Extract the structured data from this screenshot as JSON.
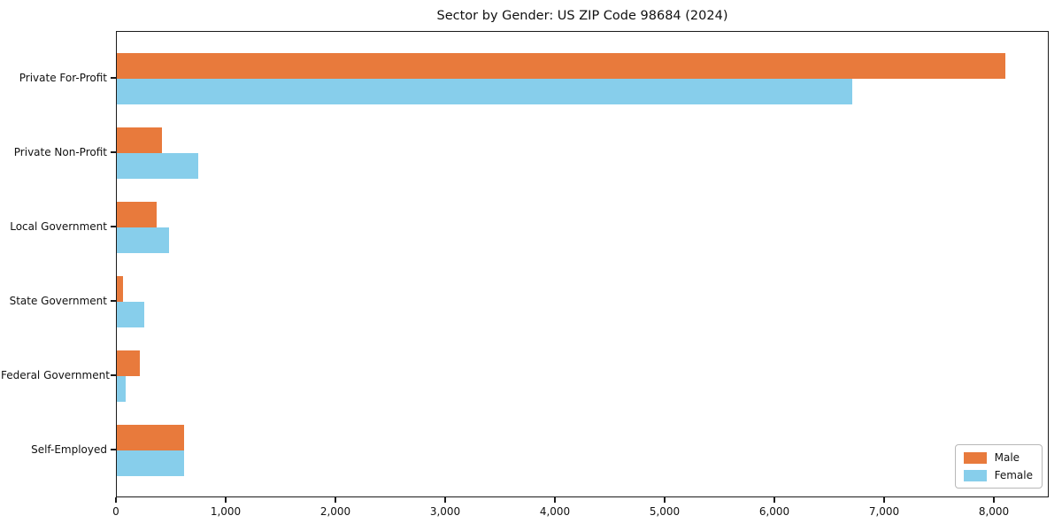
{
  "chart_data": {
    "type": "bar",
    "orientation": "horizontal",
    "title": "Sector by Gender: US ZIP Code 98684 (2024)",
    "categories": [
      "Private For-Profit",
      "Private Non-Profit",
      "Local Government",
      "State Government",
      "Federal Government",
      "Self-Employed"
    ],
    "series": [
      {
        "name": "Male",
        "color": "#E87A3C",
        "values": [
          8100,
          410,
          365,
          60,
          210,
          615
        ]
      },
      {
        "name": "Female",
        "color": "#87CEEB",
        "values": [
          6700,
          745,
          475,
          250,
          80,
          615
        ]
      }
    ],
    "xlabel": "",
    "ylabel": "",
    "xlim": [
      0,
      8500
    ],
    "x_ticks": [
      0,
      1000,
      2000,
      3000,
      4000,
      5000,
      6000,
      7000,
      8000
    ],
    "x_tick_labels": [
      "0",
      "1,000",
      "2,000",
      "3,000",
      "4,000",
      "5,000",
      "6,000",
      "7,000",
      "8,000"
    ],
    "grid": false,
    "legend_position": "lower right",
    "frame_color": "#1a1a1a",
    "background_color": "#ffffff"
  }
}
